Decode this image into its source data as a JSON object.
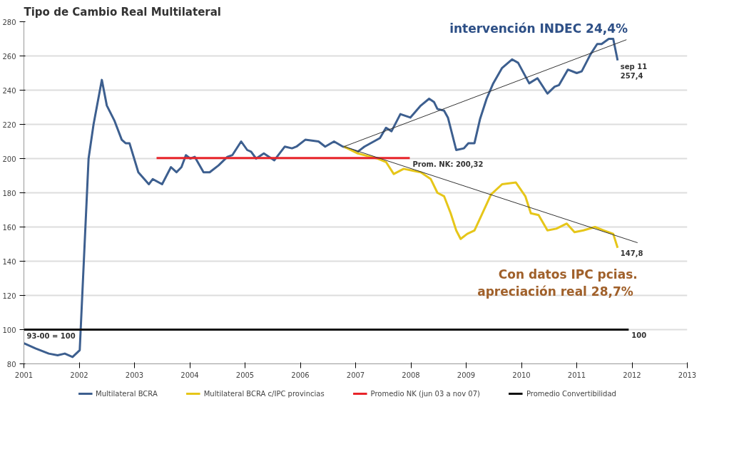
{
  "chart_data": {
    "type": "line",
    "title": "Tipo de Cambio Real Multilateral",
    "xlim": [
      2001,
      2013
    ],
    "xticks": [
      2001,
      2002,
      2003,
      2004,
      2005,
      2006,
      2007,
      2008,
      2009,
      2010,
      2011,
      2012,
      2013
    ],
    "ylim": [
      80,
      280
    ],
    "yticks": [
      80,
      100,
      120,
      140,
      160,
      180,
      200,
      220,
      240,
      260,
      280
    ],
    "grid": "y",
    "legend": "bottom",
    "marker": "none",
    "line_style": "solid",
    "series": [
      {
        "name": "Multilateral BCRA",
        "color": "#3d5f8f",
        "x": [
          2001.0,
          2001.21,
          2001.45,
          2001.61,
          2001.74,
          2001.88,
          2002.01,
          2002.07,
          2002.17,
          2002.26,
          2002.41,
          2002.5,
          2002.64,
          2002.77,
          2002.84,
          2002.91,
          2003.07,
          2003.26,
          2003.33,
          2003.5,
          2003.66,
          2003.76,
          2003.85,
          2003.93,
          2004.01,
          2004.09,
          2004.25,
          2004.36,
          2004.52,
          2004.68,
          2004.77,
          2004.93,
          2005.04,
          2005.11,
          2005.2,
          2005.34,
          2005.53,
          2005.72,
          2005.85,
          2005.93,
          2006.09,
          2006.33,
          2006.45,
          2006.61,
          2006.77,
          2007.04,
          2007.16,
          2007.44,
          2007.55,
          2007.65,
          2007.81,
          2007.99,
          2008.18,
          2008.33,
          2008.42,
          2008.48,
          2008.6,
          2008.67,
          2008.82,
          2008.96,
          2009.04,
          2009.15,
          2009.25,
          2009.37,
          2009.49,
          2009.65,
          2009.83,
          2009.94,
          2010.14,
          2010.29,
          2010.47,
          2010.6,
          2010.68,
          2010.84,
          2011.0,
          2011.09,
          2011.25,
          2011.37,
          2011.45,
          2011.58,
          2011.66,
          2011.74
        ],
        "values": [
          92,
          89,
          86,
          85,
          86,
          84,
          88,
          130,
          200,
          220,
          246,
          231,
          222,
          211,
          209,
          209,
          192,
          185,
          188,
          185,
          195,
          192,
          195,
          202,
          200,
          201,
          192,
          192,
          196,
          201,
          202,
          210,
          205,
          204,
          200,
          203,
          199,
          207,
          206,
          207,
          211,
          210,
          207,
          210,
          207,
          204,
          207,
          212,
          218,
          216,
          226,
          224,
          231,
          235,
          233,
          229,
          228,
          224,
          205,
          206,
          209,
          209,
          223,
          235,
          244,
          253,
          258,
          256,
          244,
          247,
          238,
          242,
          243,
          252,
          250,
          251,
          261,
          267,
          267,
          270,
          270,
          257.4
        ]
      },
      {
        "name": "Multilateral BCRA c/IPC provincias",
        "color": "#e6c619",
        "x": [
          2006.79,
          2007.04,
          2007.4,
          2007.55,
          2007.69,
          2007.87,
          2008.02,
          2008.18,
          2008.36,
          2008.48,
          2008.6,
          2008.72,
          2008.82,
          2008.9,
          2009.02,
          2009.15,
          2009.28,
          2009.45,
          2009.65,
          2009.9,
          2010.07,
          2010.17,
          2010.31,
          2010.47,
          2010.63,
          2010.82,
          2010.96,
          2011.12,
          2011.33,
          2011.49,
          2011.66,
          2011.74
        ],
        "values": [
          207,
          203,
          200,
          198,
          191,
          194,
          193,
          192,
          188,
          180,
          178,
          168,
          158,
          153,
          156,
          158,
          167,
          179,
          185,
          186,
          178,
          168,
          167,
          158,
          159,
          162,
          157,
          158,
          160,
          158,
          156,
          147.8
        ]
      },
      {
        "name": "Promedio NK (jun 03 a nov 07)",
        "color": "#e8242a",
        "x": [
          2003.4,
          2007.98
        ],
        "values": [
          200.32,
          200.32
        ]
      },
      {
        "name": "Promedio Convertibilidad",
        "color": "#111111",
        "x": [
          2001.0,
          2011.94
        ],
        "values": [
          100,
          100
        ]
      },
      {
        "type": "line",
        "color": "#333333",
        "x": [
          2006.79,
          2011.9
        ],
        "values": [
          207,
          269.5
        ]
      },
      {
        "type": "line",
        "color": "#333333",
        "x": [
          2006.79,
          2012.1
        ],
        "values": [
          207,
          150.8
        ]
      }
    ],
    "annotations": [
      {
        "text": "sep 11\n257,4",
        "x": 2011.74,
        "y": 257.4
      },
      {
        "text": "147,8",
        "x": 2011.74,
        "y": 147.8
      },
      {
        "text": "Prom. NK: 200,32",
        "x": 2007.98,
        "y": 200.32
      },
      {
        "text": "93-00 = 100",
        "x": 2001.0,
        "y": 100
      },
      {
        "text": "100",
        "x": 2011.94,
        "y": 100
      },
      "intervención INDEC  24,4%",
      "Con datos IPC pcias.\napreciación real  28,7%"
    ]
  }
}
